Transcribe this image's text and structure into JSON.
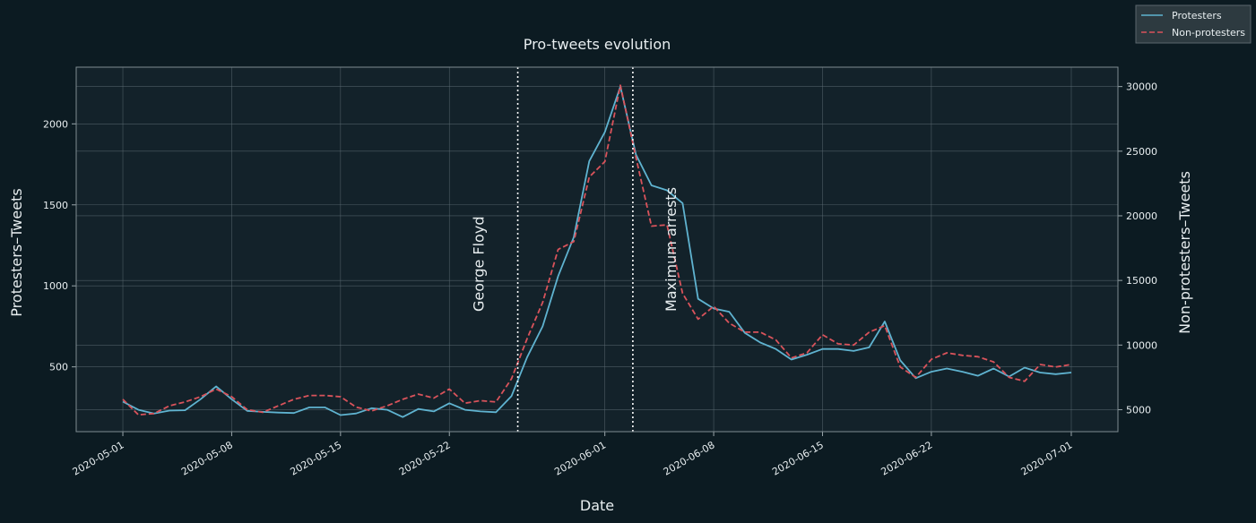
{
  "colors": {
    "background": "#0c1b22",
    "plot_background": "#13222a",
    "protesters": "#5fb3d0",
    "non_protesters": "#d9535b",
    "grid": "#5d6c73",
    "text": "#e8eef0",
    "vline": "#ffffff",
    "legend_bg": "#2d3a40"
  },
  "chart_data": {
    "type": "line",
    "title": "Pro-tweets evolution",
    "xlabel": "Date",
    "ylabel_left": "Protesters–Tweets",
    "ylabel_right": "Non-protesters–Tweets",
    "x_tick_labels": [
      "2020-05-01",
      "2020-05-08",
      "2020-05-15",
      "2020-05-22",
      "2020-06-01",
      "2020-06-08",
      "2020-06-15",
      "2020-06-22",
      "2020-07-01"
    ],
    "x_tick_days": [
      0,
      7,
      14,
      21,
      31,
      38,
      45,
      52,
      61
    ],
    "x_range_days": [
      -3,
      64
    ],
    "y_left_range": [
      100,
      2350
    ],
    "y_left_ticks": [
      500,
      1000,
      1500,
      2000
    ],
    "y_right_range": [
      3300,
      31500
    ],
    "y_right_ticks": [
      5000,
      10000,
      15000,
      20000,
      25000,
      30000
    ],
    "grid": true,
    "legend_location": "upper-right (outside)",
    "series": [
      {
        "name": "Protesters",
        "axis": "left",
        "style": "solid",
        "values": [
          285,
          235,
          212,
          230,
          232,
          300,
          380,
          300,
          228,
          222,
          218,
          215,
          250,
          250,
          202,
          212,
          245,
          235,
          190,
          240,
          225,
          275,
          235,
          225,
          220,
          320,
          560,
          750,
          1060,
          1300,
          1770,
          1950,
          2230,
          1810,
          1620,
          1590,
          1510,
          920,
          860,
          840,
          710,
          650,
          610,
          545,
          575,
          610,
          610,
          598,
          620,
          780,
          540,
          430,
          470,
          490,
          470,
          445,
          490,
          440,
          495,
          465,
          455,
          465
        ]
      },
      {
        "name": "Non-protesters",
        "axis": "right",
        "style": "dashed",
        "values": [
          5800,
          4600,
          4700,
          5300,
          5600,
          6000,
          6600,
          6000,
          5000,
          4800,
          5300,
          5800,
          6100,
          6100,
          6000,
          5200,
          4900,
          5300,
          5800,
          6200,
          5900,
          6600,
          5500,
          5700,
          5600,
          7400,
          10500,
          13300,
          17400,
          18000,
          23000,
          24200,
          30100,
          24500,
          19200,
          19300,
          14000,
          12000,
          13000,
          11700,
          11000,
          11000,
          10400,
          9000,
          9400,
          10800,
          10100,
          10000,
          11000,
          11500,
          8300,
          7500,
          8900,
          9400,
          9200,
          9100,
          8700,
          7500,
          7200,
          8500,
          8300,
          8500
        ]
      }
    ],
    "annotations": [
      {
        "label": "George Floyd",
        "day": 25.4,
        "date": "2020-05-26"
      },
      {
        "label": "Maximum arrests",
        "day": 32.8,
        "date": "2020-06-02"
      }
    ]
  }
}
